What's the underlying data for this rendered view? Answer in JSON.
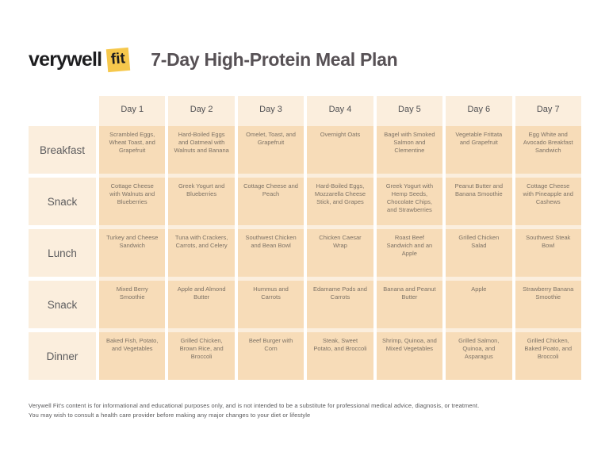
{
  "header": {
    "logo_wordmark": "verywell",
    "logo_badge": "fit",
    "title": "7-Day High-Protein Meal Plan"
  },
  "table": {
    "columns": [
      "Day 1",
      "Day 2",
      "Day 3",
      "Day 4",
      "Day 5",
      "Day 6",
      "Day 7"
    ],
    "rows": [
      {
        "label": "Breakfast",
        "cells": [
          "Scrambled Eggs, Wheat Toast, and Grapefruit",
          "Hard-Boiled Eggs and Oatmeal with Walnuts and Banana",
          "Omelet, Toast, and Grapefruit",
          "Overnight Oats",
          "Bagel with Smoked Salmon and Clementine",
          "Vegetable Frittata and Grapefruit",
          "Egg White and Avocado Breakfast Sandwich"
        ]
      },
      {
        "label": "Snack",
        "cells": [
          "Cottage Cheese with Walnuts and Blueberries",
          "Greek Yogurt and Blueberries",
          "Cottage Cheese and Peach",
          "Hard-Boiled Eggs, Mozzarella Cheese Stick, and Grapes",
          "Greek Yogurt with Hemp Seeds, Chocolate Chips, and Strawberries",
          "Peanut Butter and Banana Smoothie",
          "Cottage Cheese with Pineapple and Cashews"
        ]
      },
      {
        "label": "Lunch",
        "cells": [
          "Turkey and Cheese Sandwich",
          "Tuna with Crackers, Carrots, and Celery",
          "Southwest Chicken and Bean Bowl",
          "Chicken Caesar Wrap",
          "Roast Beef Sandwich and an Apple",
          "Grilled Chicken Salad",
          "Southwest Steak Bowl"
        ]
      },
      {
        "label": "Snack",
        "cells": [
          "Mixed Berry Smoothie",
          "Apple and Almond Butter",
          "Hummus and Carrots",
          "Edamame Pods and Carrots",
          "Banana and Peanut Butter",
          "Apple",
          "Strawberry Banana Smoothie"
        ]
      },
      {
        "label": "Dinner",
        "cells": [
          "Baked Fish, Potato, and Vegetables",
          "Grilled Chicken, Brown Rice, and Broccoli",
          "Beef Burger with Corn",
          "Steak, Sweet Potato, and Broccoli",
          "Shrimp, Quinoa, and Mixed Vegetables",
          "Grilled Salmon, Quinoa, and Asparagus",
          "Grilled Chicken, Baked Poato, and Broccoli"
        ]
      }
    ]
  },
  "footer": {
    "line1": "Verywell Fit's content is for informational and educational purposes only, and is not intended to be a substitute for professional medical advice, diagnosis, or treatment.",
    "line2": "You may wish to consult a health care provider before making any major changes to your diet or lifestyle"
  },
  "colors": {
    "badge_yellow": "#f6c84c",
    "strip_cream": "#fbeedd",
    "cell_peach": "#f7dcb8",
    "cell_text": "#7d7265",
    "title_gray": "#575155"
  }
}
